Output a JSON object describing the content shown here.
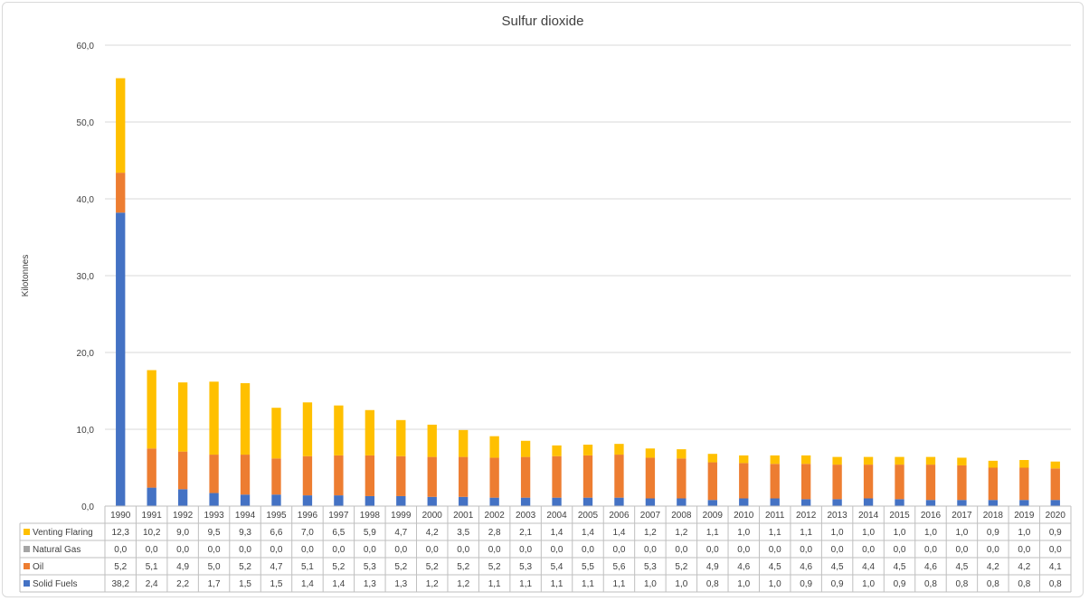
{
  "chart_data": {
    "type": "bar",
    "stacked": true,
    "title": "Sulfur dioxide",
    "xlabel": "",
    "ylabel": "Kilotonnes",
    "ylim": [
      0,
      60
    ],
    "yticks": [
      "0,0",
      "10,0",
      "20,0",
      "30,0",
      "40,0",
      "50,0",
      "60,0"
    ],
    "grid": true,
    "legend": "data-table-left",
    "categories": [
      "1990",
      "1991",
      "1992",
      "1993",
      "1994",
      "1995",
      "1996",
      "1997",
      "1998",
      "1999",
      "2000",
      "2001",
      "2002",
      "2003",
      "2004",
      "2005",
      "2006",
      "2007",
      "2008",
      "2009",
      "2010",
      "2011",
      "2012",
      "2013",
      "2014",
      "2015",
      "2016",
      "2017",
      "2018",
      "2019",
      "2020"
    ],
    "series": [
      {
        "name": "Solid Fuels",
        "color": "#4472c4",
        "values": [
          38.2,
          2.4,
          2.2,
          1.7,
          1.5,
          1.5,
          1.4,
          1.4,
          1.3,
          1.3,
          1.2,
          1.2,
          1.1,
          1.1,
          1.1,
          1.1,
          1.1,
          1.0,
          1.0,
          0.8,
          1.0,
          1.0,
          0.9,
          0.9,
          1.0,
          0.9,
          0.8,
          0.8,
          0.8,
          0.8,
          0.8
        ],
        "labels": [
          "38,2",
          "2,4",
          "2,2",
          "1,7",
          "1,5",
          "1,5",
          "1,4",
          "1,4",
          "1,3",
          "1,3",
          "1,2",
          "1,2",
          "1,1",
          "1,1",
          "1,1",
          "1,1",
          "1,1",
          "1,0",
          "1,0",
          "0,8",
          "1,0",
          "1,0",
          "0,9",
          "0,9",
          "1,0",
          "0,9",
          "0,8",
          "0,8",
          "0,8",
          "0,8",
          "0,8"
        ]
      },
      {
        "name": "Oil",
        "color": "#ed7d31",
        "values": [
          5.2,
          5.1,
          4.9,
          5.0,
          5.2,
          4.7,
          5.1,
          5.2,
          5.3,
          5.2,
          5.2,
          5.2,
          5.2,
          5.3,
          5.4,
          5.5,
          5.6,
          5.3,
          5.2,
          4.9,
          4.6,
          4.5,
          4.6,
          4.5,
          4.4,
          4.5,
          4.6,
          4.5,
          4.2,
          4.2,
          4.1
        ],
        "labels": [
          "5,2",
          "5,1",
          "4,9",
          "5,0",
          "5,2",
          "4,7",
          "5,1",
          "5,2",
          "5,3",
          "5,2",
          "5,2",
          "5,2",
          "5,2",
          "5,3",
          "5,4",
          "5,5",
          "5,6",
          "5,3",
          "5,2",
          "4,9",
          "4,6",
          "4,5",
          "4,6",
          "4,5",
          "4,4",
          "4,5",
          "4,6",
          "4,5",
          "4,2",
          "4,2",
          "4,1"
        ]
      },
      {
        "name": "Natural Gas",
        "color": "#a5a5a5",
        "values": [
          0,
          0,
          0,
          0,
          0,
          0,
          0,
          0,
          0,
          0,
          0,
          0,
          0,
          0,
          0,
          0,
          0,
          0,
          0,
          0,
          0,
          0,
          0,
          0,
          0,
          0,
          0,
          0,
          0,
          0,
          0
        ],
        "labels": [
          "0,0",
          "0,0",
          "0,0",
          "0,0",
          "0,0",
          "0,0",
          "0,0",
          "0,0",
          "0,0",
          "0,0",
          "0,0",
          "0,0",
          "0,0",
          "0,0",
          "0,0",
          "0,0",
          "0,0",
          "0,0",
          "0,0",
          "0,0",
          "0,0",
          "0,0",
          "0,0",
          "0,0",
          "0,0",
          "0,0",
          "0,0",
          "0,0",
          "0,0",
          "0,0",
          "0,0"
        ]
      },
      {
        "name": "Venting Flaring",
        "color": "#ffc000",
        "values": [
          12.3,
          10.2,
          9.0,
          9.5,
          9.3,
          6.6,
          7.0,
          6.5,
          5.9,
          4.7,
          4.2,
          3.5,
          2.8,
          2.1,
          1.4,
          1.4,
          1.4,
          1.2,
          1.2,
          1.1,
          1.0,
          1.1,
          1.1,
          1.0,
          1.0,
          1.0,
          1.0,
          1.0,
          0.9,
          1.0,
          0.9
        ],
        "labels": [
          "12,3",
          "10,2",
          "9,0",
          "9,5",
          "9,3",
          "6,6",
          "7,0",
          "6,5",
          "5,9",
          "4,7",
          "4,2",
          "3,5",
          "2,8",
          "2,1",
          "1,4",
          "1,4",
          "1,4",
          "1,2",
          "1,2",
          "1,1",
          "1,0",
          "1,1",
          "1,1",
          "1,0",
          "1,0",
          "1,0",
          "1,0",
          "1,0",
          "0,9",
          "1,0",
          "0,9"
        ]
      }
    ]
  }
}
